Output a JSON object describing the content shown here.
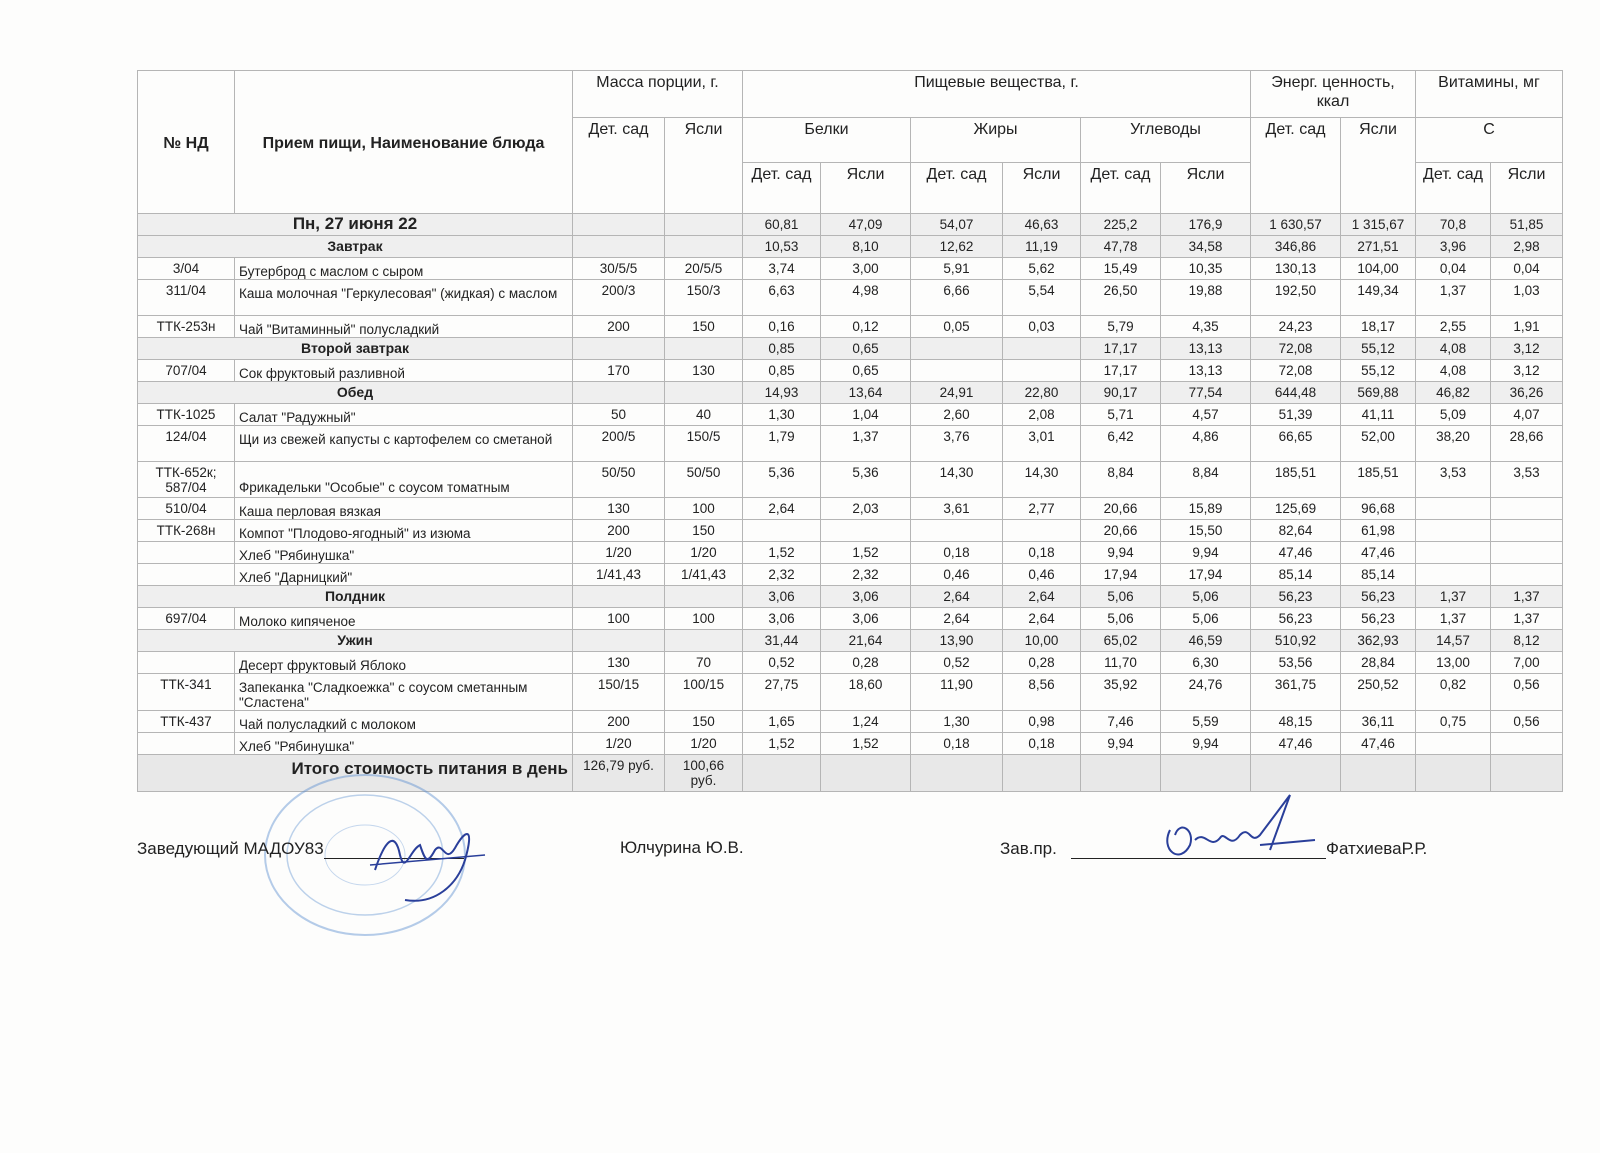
{
  "header": {
    "nd": "№ НД",
    "dish": "Прием пищи, Наименование блюда",
    "mass": "Масса порции, г.",
    "nutrients": "Пищевые вещества, г.",
    "energy": "Энерг. ценность, ккал",
    "vitamins": "Витамины, мг",
    "kinder": "Дет. сад",
    "nursery": "Ясли",
    "proteins": "Белки",
    "fats": "Жиры",
    "carbs": "Углеводы",
    "vitC": "С"
  },
  "rows": [
    {
      "type": "day",
      "label": "Пн, 27 июня 22",
      "v": [
        "",
        "",
        "60,81",
        "47,09",
        "54,07",
        "46,63",
        "225,2",
        "176,9",
        "1 630,57",
        "1 315,67",
        "70,8",
        "51,85"
      ]
    },
    {
      "type": "section",
      "label": "Завтрак",
      "v": [
        "",
        "",
        "10,53",
        "8,10",
        "12,62",
        "11,19",
        "47,78",
        "34,58",
        "346,86",
        "271,51",
        "3,96",
        "2,98"
      ]
    },
    {
      "type": "item",
      "nd": "3/04",
      "name": "Бутерброд с маслом с сыром",
      "v": [
        "30/5/5",
        "20/5/5",
        "3,74",
        "3,00",
        "5,91",
        "5,62",
        "15,49",
        "10,35",
        "130,13",
        "104,00",
        "0,04",
        "0,04"
      ]
    },
    {
      "type": "item",
      "tall": true,
      "nd": "311/04",
      "name": "Каша молочная \"Геркулесовая\" (жидкая) с маслом",
      "v": [
        "200/3",
        "150/3",
        "6,63",
        "4,98",
        "6,66",
        "5,54",
        "26,50",
        "19,88",
        "192,50",
        "149,34",
        "1,37",
        "1,03"
      ]
    },
    {
      "type": "item",
      "nd": "ТТК-253н",
      "name": "Чай \"Витаминный\" полусладкий",
      "v": [
        "200",
        "150",
        "0,16",
        "0,12",
        "0,05",
        "0,03",
        "5,79",
        "4,35",
        "24,23",
        "18,17",
        "2,55",
        "1,91"
      ]
    },
    {
      "type": "section",
      "label": "Второй завтрак",
      "v": [
        "",
        "",
        "0,85",
        "0,65",
        "",
        "",
        "17,17",
        "13,13",
        "72,08",
        "55,12",
        "4,08",
        "3,12"
      ]
    },
    {
      "type": "item",
      "nd": "707/04",
      "name": "Сок фруктовый разливной",
      "v": [
        "170",
        "130",
        "0,85",
        "0,65",
        "",
        "",
        "17,17",
        "13,13",
        "72,08",
        "55,12",
        "4,08",
        "3,12"
      ]
    },
    {
      "type": "section",
      "label": "Обед",
      "v": [
        "",
        "",
        "14,93",
        "13,64",
        "24,91",
        "22,80",
        "90,17",
        "77,54",
        "644,48",
        "569,88",
        "46,82",
        "36,26"
      ]
    },
    {
      "type": "item",
      "nd": "ТТК-1025",
      "name": "Салат \"Радужный\"",
      "v": [
        "50",
        "40",
        "1,30",
        "1,04",
        "2,60",
        "2,08",
        "5,71",
        "4,57",
        "51,39",
        "41,11",
        "5,09",
        "4,07"
      ]
    },
    {
      "type": "item",
      "tall": true,
      "nd": "124/04",
      "name": "Щи из свежей капусты с картофелем со сметаной",
      "v": [
        "200/5",
        "150/5",
        "1,79",
        "1,37",
        "3,76",
        "3,01",
        "6,42",
        "4,86",
        "66,65",
        "52,00",
        "38,20",
        "28,66"
      ]
    },
    {
      "type": "item",
      "tall": true,
      "bottom": true,
      "nd": "ТТК-652к; 587/04",
      "name": "Фрикадельки \"Особые\" с соусом томатным",
      "v": [
        "50/50",
        "50/50",
        "5,36",
        "5,36",
        "14,30",
        "14,30",
        "8,84",
        "8,84",
        "185,51",
        "185,51",
        "3,53",
        "3,53"
      ]
    },
    {
      "type": "item",
      "nd": "510/04",
      "name": "Каша перловая вязкая",
      "v": [
        "130",
        "100",
        "2,64",
        "2,03",
        "3,61",
        "2,77",
        "20,66",
        "15,89",
        "125,69",
        "96,68",
        "",
        ""
      ]
    },
    {
      "type": "item",
      "nd": "ТТК-268н",
      "name": "Компот \"Плодово-ягодный\" из изюма",
      "v": [
        "200",
        "150",
        "",
        "",
        "",
        "",
        "20,66",
        "15,50",
        "82,64",
        "61,98",
        "",
        ""
      ]
    },
    {
      "type": "item",
      "nd": "",
      "name": "Хлеб \"Рябинушка\"",
      "v": [
        "1/20",
        "1/20",
        "1,52",
        "1,52",
        "0,18",
        "0,18",
        "9,94",
        "9,94",
        "47,46",
        "47,46",
        "",
        ""
      ]
    },
    {
      "type": "item",
      "nd": "",
      "name": "Хлеб \"Дарницкий\"",
      "v": [
        "1/41,43",
        "1/41,43",
        "2,32",
        "2,32",
        "0,46",
        "0,46",
        "17,94",
        "17,94",
        "85,14",
        "85,14",
        "",
        ""
      ]
    },
    {
      "type": "section",
      "label": "Полдник",
      "v": [
        "",
        "",
        "3,06",
        "3,06",
        "2,64",
        "2,64",
        "5,06",
        "5,06",
        "56,23",
        "56,23",
        "1,37",
        "1,37"
      ]
    },
    {
      "type": "item",
      "nd": "697/04",
      "name": "Молоко кипяченое",
      "v": [
        "100",
        "100",
        "3,06",
        "3,06",
        "2,64",
        "2,64",
        "5,06",
        "5,06",
        "56,23",
        "56,23",
        "1,37",
        "1,37"
      ]
    },
    {
      "type": "section",
      "label": "Ужин",
      "v": [
        "",
        "",
        "31,44",
        "21,64",
        "13,90",
        "10,00",
        "65,02",
        "46,59",
        "510,92",
        "362,93",
        "14,57",
        "8,12"
      ]
    },
    {
      "type": "item",
      "nd": "",
      "name": "Десерт фруктовый Яблоко",
      "v": [
        "130",
        "70",
        "0,52",
        "0,28",
        "0,52",
        "0,28",
        "11,70",
        "6,30",
        "53,56",
        "28,84",
        "13,00",
        "7,00"
      ]
    },
    {
      "type": "item",
      "tall": true,
      "nd": "ТТК-341",
      "name": "Запеканка \"Сладкоежка\" с соусом сметанным \"Сластена\"",
      "v": [
        "150/15",
        "100/15",
        "27,75",
        "18,60",
        "11,90",
        "8,56",
        "35,92",
        "24,76",
        "361,75",
        "250,52",
        "0,82",
        "0,56"
      ]
    },
    {
      "type": "item",
      "nd": "ТТК-437",
      "name": "Чай полусладкий с молоком",
      "v": [
        "200",
        "150",
        "1,65",
        "1,24",
        "1,30",
        "0,98",
        "7,46",
        "5,59",
        "48,15",
        "36,11",
        "0,75",
        "0,56"
      ]
    },
    {
      "type": "item",
      "nd": "",
      "name": "Хлеб \"Рябинушка\"",
      "v": [
        "1/20",
        "1/20",
        "1,52",
        "1,52",
        "0,18",
        "0,18",
        "9,94",
        "9,94",
        "47,46",
        "47,46",
        "",
        ""
      ]
    },
    {
      "type": "total",
      "label": "Итого стоимость питания в день",
      "v": [
        "126,79 руб.",
        "100,66 руб.",
        "",
        "",
        "",
        "",
        "",
        "",
        "",
        "",
        "",
        ""
      ]
    }
  ],
  "footer": {
    "head_title": "Заведующий МАДОУ83",
    "head_name": "Юлчурина Ю.В.",
    "prod_title": "Зав.пр.",
    "prod_name": "ФатхиеваР.Р."
  },
  "colors": {
    "stamp": "#5b8fd0",
    "signature": "#2a3f9a",
    "grid": "#b5b5b5",
    "section_bg": "#efefef"
  }
}
